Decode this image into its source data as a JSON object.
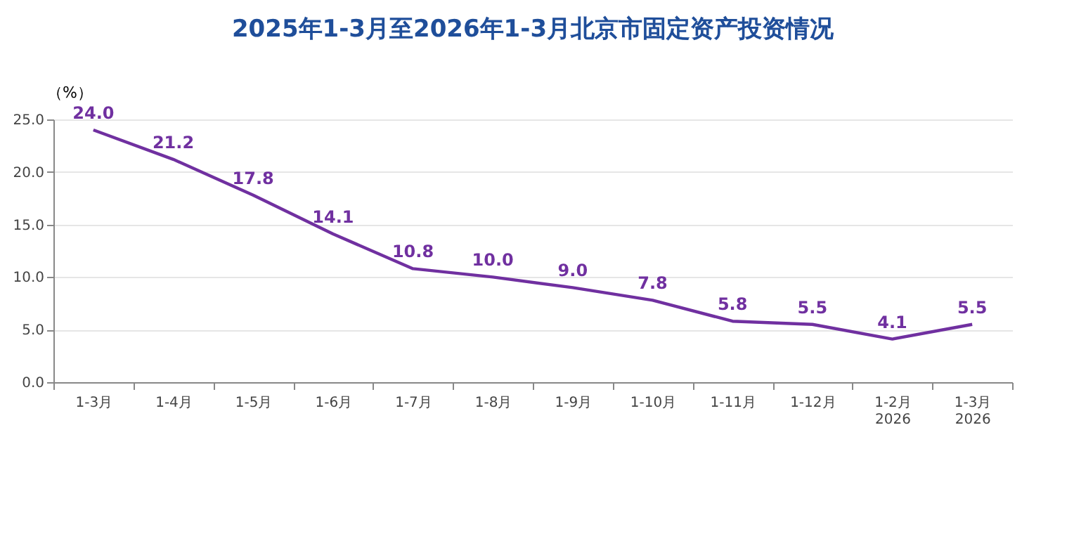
{
  "chart_data": {
    "type": "line",
    "title": "2025年1-3月至2026年1-3月北京市固定资产投资情况",
    "ylabel": "（%）",
    "categories": [
      "1-3月",
      "1-4月",
      "1-5月",
      "1-6月",
      "1-7月",
      "1-8月",
      "1-9月",
      "1-10月",
      "1-11月",
      "1-12月",
      "1-2月\n2026",
      "1-3月\n2026"
    ],
    "series": [
      {
        "color": "#7030a0",
        "values": [
          24.0,
          21.2,
          17.8,
          14.1,
          10.8,
          10.0,
          9.0,
          7.8,
          5.8,
          5.5,
          4.1,
          5.5
        ],
        "value_labels": [
          "24.0",
          "21.2",
          "17.8",
          "14.1",
          "10.8",
          "10.0",
          "9.0",
          "7.8",
          "5.8",
          "5.5",
          "4.1",
          "5.5"
        ]
      }
    ],
    "ylim": [
      0,
      25
    ],
    "yticks": [
      {
        "value": 0,
        "label": "0.0"
      },
      {
        "value": 5,
        "label": "5.0"
      },
      {
        "value": 10,
        "label": "10.0"
      },
      {
        "value": 15,
        "label": "15.0"
      },
      {
        "value": 20,
        "label": "20.0"
      },
      {
        "value": 25,
        "label": "25.0"
      }
    ],
    "grid": "y",
    "marker": "none",
    "line_style": "solid",
    "data_labels": true
  }
}
